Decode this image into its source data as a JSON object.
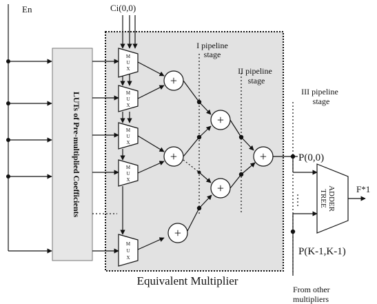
{
  "labels": {
    "en": "En",
    "ci": "Ci(0,0)",
    "lut": "LUTs of Pre-multiplied Coefficients",
    "mux": "M\nU\nX",
    "stage1": "I pipeline\nstage",
    "stage2": "II pipeline\nstage",
    "stage3": "III pipeline\nstage",
    "p00": "P(0,0)",
    "pk": "P(K-1,K-1)",
    "adder_tree": "ADDER\nTREE",
    "output": "F*1",
    "equiv": "Equivalent Multiplier",
    "from_other": "From other\nmultipliers",
    "plus": "+"
  },
  "colors": {
    "lut_fill": "#e6e6e6",
    "equiv_fill": "#e2e2e2",
    "line": "#111111",
    "adder_fill": "#ffffff"
  }
}
